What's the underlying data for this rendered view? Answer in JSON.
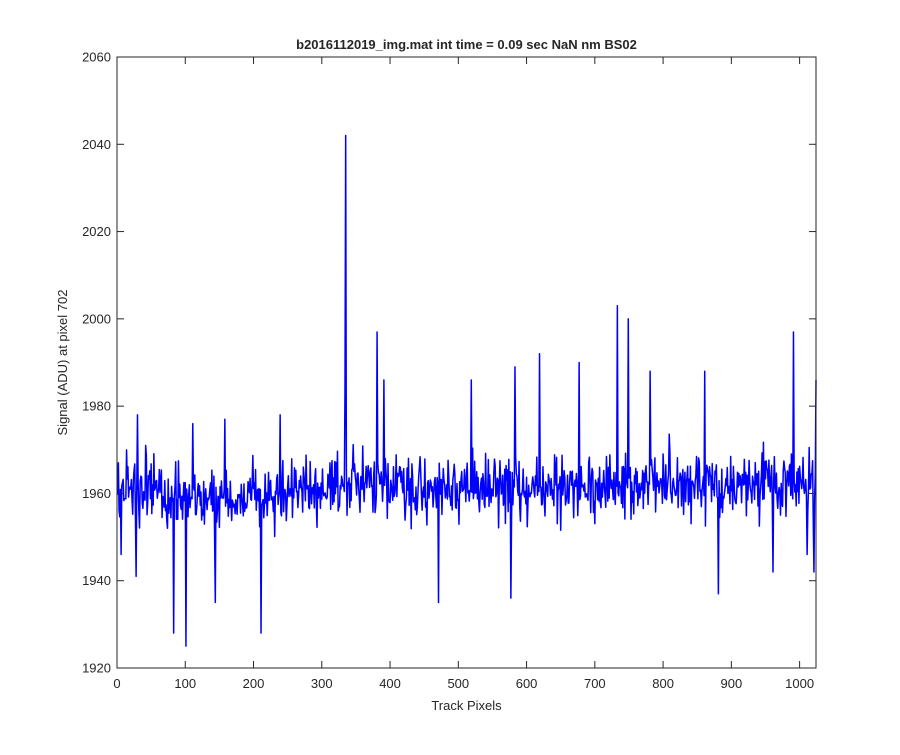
{
  "chart_data": {
    "type": "line",
    "title": "b2016112019_img.mat int time = 0.09 sec  NaN nm BS02",
    "xlabel": "Track Pixels",
    "ylabel": "Signal (ADU) at pixel 702",
    "xlim": [
      0,
      1024
    ],
    "ylim": [
      1920,
      2060
    ],
    "xticks": [
      0,
      100,
      200,
      300,
      400,
      500,
      600,
      700,
      800,
      900,
      1000
    ],
    "yticks": [
      1920,
      1940,
      1960,
      1980,
      2000,
      2020,
      2040,
      2060
    ],
    "grid": false,
    "box": true,
    "series": [
      {
        "color": "#0000ff",
        "approx_mean": 1961,
        "noise_range": [
          1925,
          2003
        ],
        "notable_points": [
          {
            "x": 1,
            "y": 1967
          },
          {
            "x": 5,
            "y": 1946
          },
          {
            "x": 27,
            "y": 1941
          },
          {
            "x": 29,
            "y": 1978
          },
          {
            "x": 82,
            "y": 1928
          },
          {
            "x": 100,
            "y": 1925
          },
          {
            "x": 110,
            "y": 1976
          },
          {
            "x": 143,
            "y": 1935
          },
          {
            "x": 157,
            "y": 1977
          },
          {
            "x": 210,
            "y": 1928
          },
          {
            "x": 238,
            "y": 1978
          },
          {
            "x": 333,
            "y": 1984
          },
          {
            "x": 334,
            "y": 2042
          },
          {
            "x": 336,
            "y": 1955
          },
          {
            "x": 380,
            "y": 1997
          },
          {
            "x": 390,
            "y": 1986
          },
          {
            "x": 470,
            "y": 1935
          },
          {
            "x": 518,
            "y": 1986
          },
          {
            "x": 576,
            "y": 1936
          },
          {
            "x": 582,
            "y": 1989
          },
          {
            "x": 618,
            "y": 1992
          },
          {
            "x": 676,
            "y": 1990
          },
          {
            "x": 732,
            "y": 2003
          },
          {
            "x": 748,
            "y": 2000
          },
          {
            "x": 780,
            "y": 1988
          },
          {
            "x": 860,
            "y": 1988
          },
          {
            "x": 880,
            "y": 1937
          },
          {
            "x": 960,
            "y": 1942
          },
          {
            "x": 990,
            "y": 1997
          },
          {
            "x": 1010,
            "y": 1946
          },
          {
            "x": 1020,
            "y": 1942
          },
          {
            "x": 1023,
            "y": 1986
          }
        ]
      }
    ]
  }
}
